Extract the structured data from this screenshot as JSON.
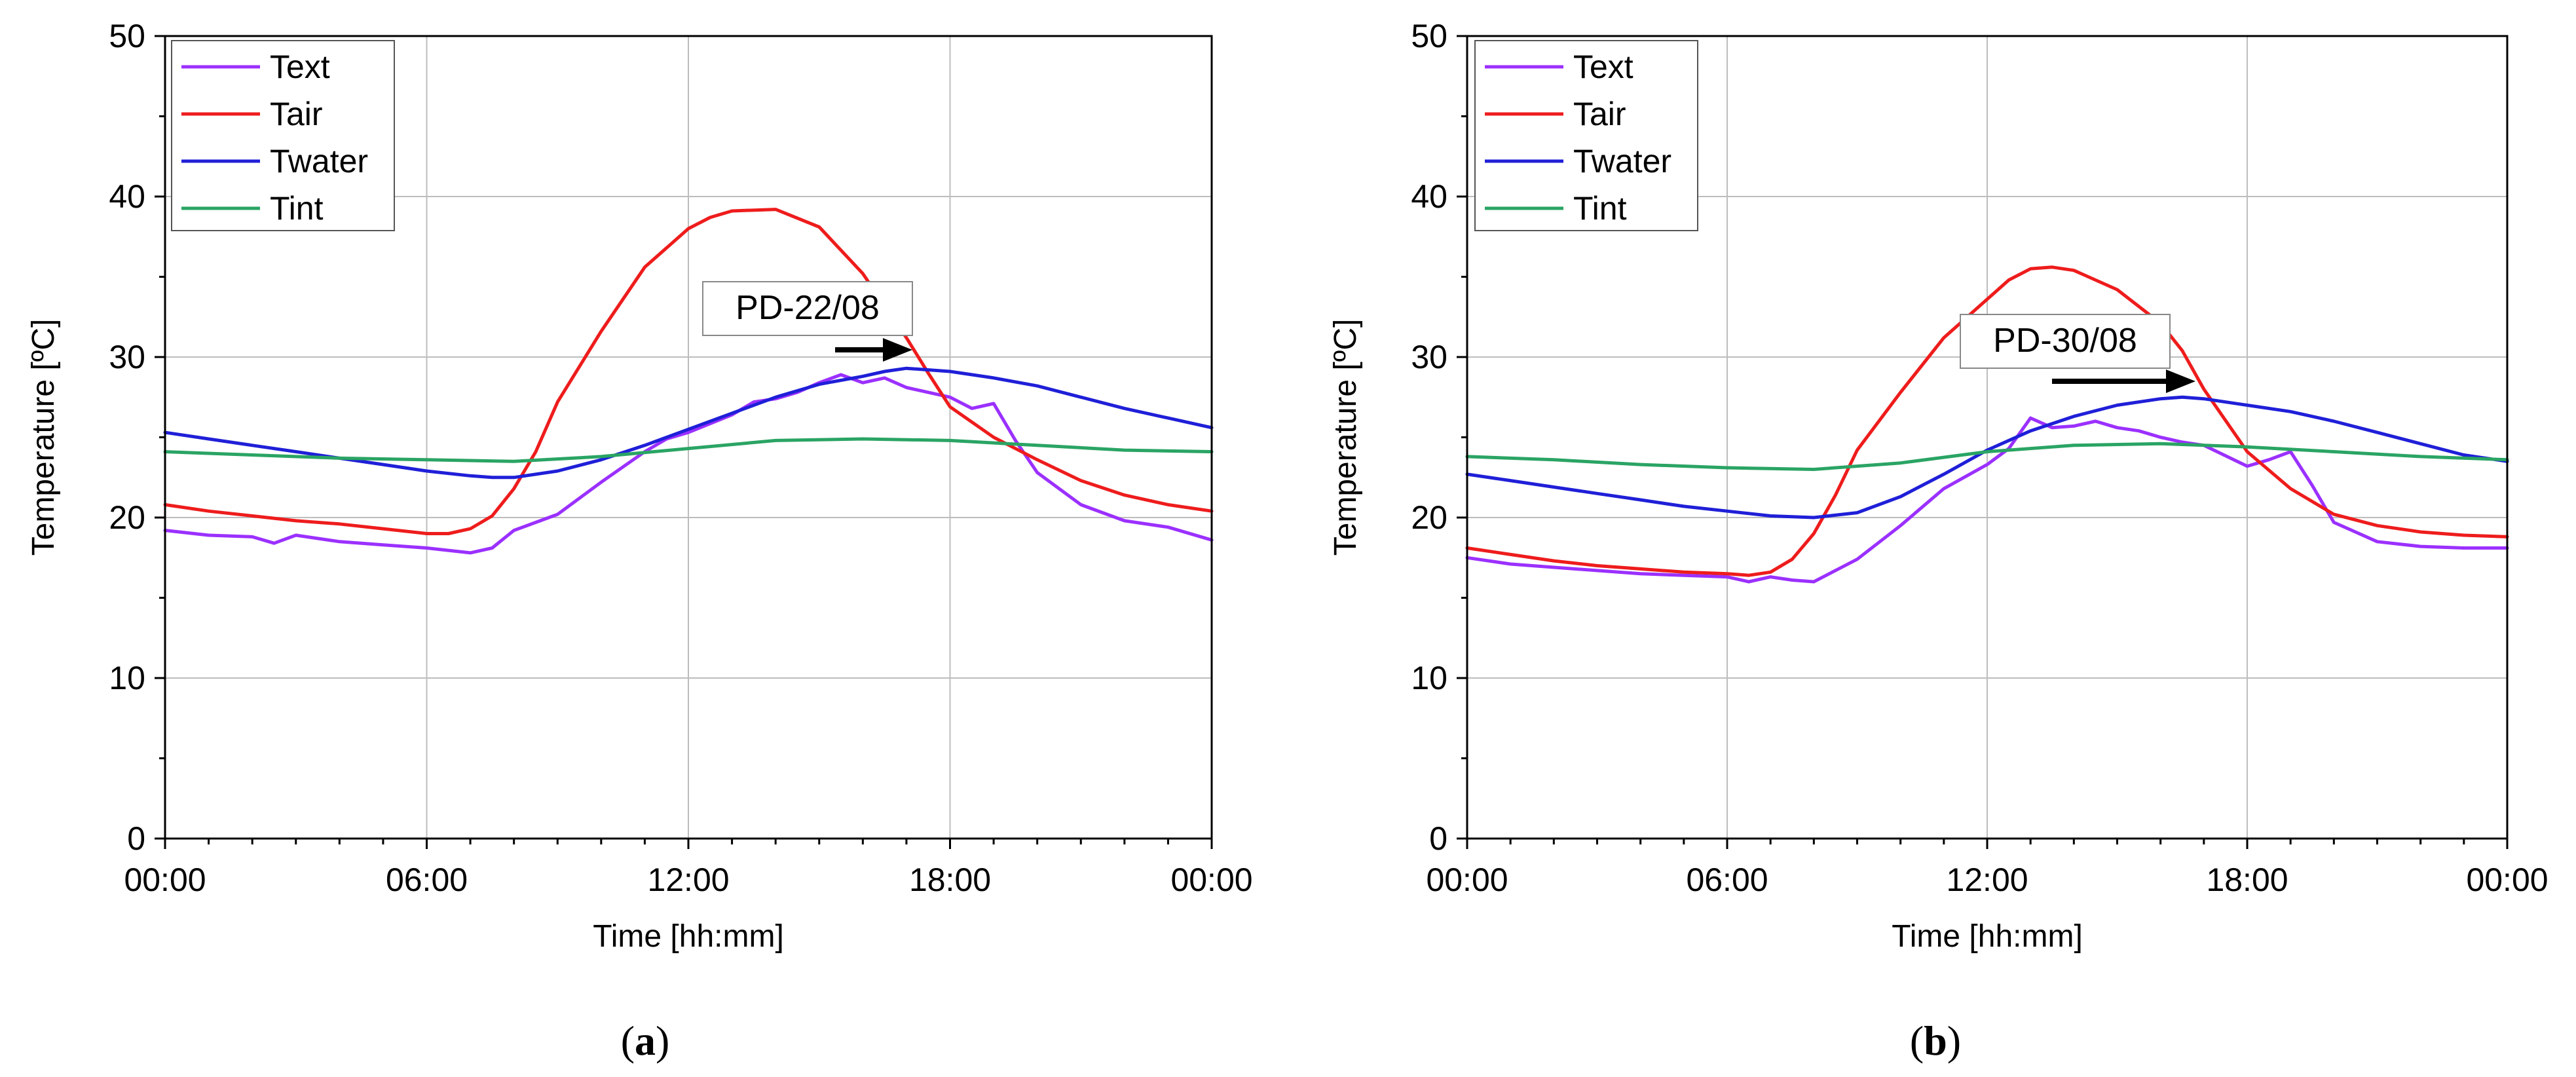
{
  "chart_data": [
    {
      "type": "line",
      "panel_caption": "a",
      "annotation": "PD-22/08",
      "xlabel": "Time [hh:mm]",
      "ylabel": "Temperature [ºC]",
      "x_tick_labels": [
        "00:00",
        "06:00",
        "12:00",
        "18:00",
        "00:00"
      ],
      "y_tick_labels": [
        "0",
        "10",
        "20",
        "30",
        "40",
        "50"
      ],
      "xlim": [
        0,
        24
      ],
      "ylim": [
        0,
        50
      ],
      "grid": true,
      "legend_position": "top-left",
      "series": [
        {
          "name": "Text",
          "color": "#9b30ff",
          "x": [
            0,
            1,
            2,
            2.5,
            3,
            4,
            5,
            6,
            7,
            7.5,
            8,
            9,
            10,
            11,
            11.5,
            12,
            13,
            13.5,
            14,
            14.5,
            15,
            15.5,
            16,
            16.5,
            17,
            18,
            18.5,
            19,
            19.5,
            20,
            21,
            22,
            23,
            24
          ],
          "y": [
            19.2,
            18.9,
            18.8,
            18.4,
            18.9,
            18.5,
            18.3,
            18.1,
            17.8,
            18.1,
            19.2,
            20.2,
            22.2,
            24.1,
            24.9,
            25.3,
            26.4,
            27.2,
            27.4,
            27.8,
            28.4,
            28.9,
            28.4,
            28.7,
            28.1,
            27.5,
            26.8,
            27.1,
            24.8,
            22.8,
            20.8,
            19.8,
            19.4,
            18.6
          ]
        },
        {
          "name": "Tair",
          "color": "#ee1c1c",
          "x": [
            0,
            1,
            2,
            3,
            4,
            5,
            6,
            6.5,
            7,
            7.5,
            8,
            8.5,
            9,
            10,
            11,
            12,
            12.5,
            13,
            14,
            15,
            16,
            17,
            17.5,
            18,
            19,
            20,
            21,
            22,
            23,
            24
          ],
          "y": [
            20.8,
            20.4,
            20.1,
            19.8,
            19.6,
            19.3,
            19.0,
            19.0,
            19.3,
            20.1,
            21.8,
            24.1,
            27.2,
            31.6,
            35.6,
            38.0,
            38.7,
            39.1,
            39.2,
            38.1,
            35.2,
            31.2,
            29.0,
            26.9,
            25.0,
            23.6,
            22.3,
            21.4,
            20.8,
            20.4
          ]
        },
        {
          "name": "Twater",
          "color": "#1f1fd8",
          "x": [
            0,
            1,
            2,
            3,
            4,
            5,
            6,
            7,
            7.5,
            8,
            9,
            10,
            11,
            12,
            13,
            14,
            15,
            16,
            16.5,
            17,
            18,
            19,
            20,
            21,
            22,
            23,
            24
          ],
          "y": [
            25.3,
            24.9,
            24.5,
            24.1,
            23.7,
            23.3,
            22.9,
            22.6,
            22.5,
            22.5,
            22.9,
            23.6,
            24.5,
            25.5,
            26.5,
            27.5,
            28.3,
            28.8,
            29.1,
            29.3,
            29.1,
            28.7,
            28.2,
            27.5,
            26.8,
            26.2,
            25.6
          ]
        },
        {
          "name": "Tint",
          "color": "#2aa464",
          "x": [
            0,
            2,
            4,
            6,
            8,
            10,
            12,
            14,
            16,
            18,
            20,
            22,
            24
          ],
          "y": [
            24.1,
            23.9,
            23.7,
            23.6,
            23.5,
            23.8,
            24.3,
            24.8,
            24.9,
            24.8,
            24.5,
            24.2,
            24.1
          ]
        }
      ]
    },
    {
      "type": "line",
      "panel_caption": "b",
      "annotation": "PD-30/08",
      "xlabel": "Time [hh:mm]",
      "ylabel": "Temperature [ºC]",
      "x_tick_labels": [
        "00:00",
        "06:00",
        "12:00",
        "18:00",
        "00:00"
      ],
      "y_tick_labels": [
        "0",
        "10",
        "20",
        "30",
        "40",
        "50"
      ],
      "xlim": [
        0,
        24
      ],
      "ylim": [
        0,
        50
      ],
      "grid": true,
      "legend_position": "top-left",
      "series": [
        {
          "name": "Text",
          "color": "#9b30ff",
          "x": [
            0,
            1,
            2,
            3,
            4,
            5,
            6,
            6.5,
            7,
            7.5,
            8,
            9,
            10,
            11,
            12,
            12.5,
            13,
            13.5,
            14,
            14.5,
            15,
            15.5,
            16,
            16.5,
            17,
            18,
            18.5,
            19,
            19.5,
            20,
            21,
            22,
            23,
            24
          ],
          "y": [
            17.5,
            17.1,
            16.9,
            16.7,
            16.5,
            16.4,
            16.3,
            16.0,
            16.3,
            16.1,
            16.0,
            17.4,
            19.5,
            21.8,
            23.3,
            24.3,
            26.2,
            25.6,
            25.7,
            26.0,
            25.6,
            25.4,
            25.0,
            24.7,
            24.5,
            23.2,
            23.6,
            24.1,
            22.0,
            19.7,
            18.5,
            18.2,
            18.1,
            18.1
          ]
        },
        {
          "name": "Tair",
          "color": "#ee1c1c",
          "x": [
            0,
            1,
            2,
            3,
            4,
            5,
            6,
            6.5,
            7,
            7.5,
            8,
            8.5,
            9,
            10,
            11,
            12,
            12.5,
            13,
            13.5,
            14,
            15,
            16,
            16.5,
            17,
            18,
            19,
            20,
            21,
            22,
            23,
            24
          ],
          "y": [
            18.1,
            17.7,
            17.3,
            17.0,
            16.8,
            16.6,
            16.5,
            16.4,
            16.6,
            17.4,
            19.0,
            21.4,
            24.2,
            27.8,
            31.2,
            33.6,
            34.8,
            35.5,
            35.6,
            35.4,
            34.2,
            32.1,
            30.4,
            28.0,
            24.1,
            21.8,
            20.2,
            19.5,
            19.1,
            18.9,
            18.8
          ]
        },
        {
          "name": "Twater",
          "color": "#1f1fd8",
          "x": [
            0,
            1,
            2,
            3,
            4,
            5,
            6,
            7,
            8,
            9,
            10,
            11,
            12,
            13,
            14,
            15,
            16,
            16.5,
            17,
            18,
            19,
            20,
            21,
            22,
            23,
            24
          ],
          "y": [
            22.7,
            22.3,
            21.9,
            21.5,
            21.1,
            20.7,
            20.4,
            20.1,
            20.0,
            20.3,
            21.3,
            22.7,
            24.2,
            25.4,
            26.3,
            27.0,
            27.4,
            27.5,
            27.4,
            27.0,
            26.6,
            26.0,
            25.3,
            24.6,
            23.9,
            23.5
          ]
        },
        {
          "name": "Tint",
          "color": "#2aa464",
          "x": [
            0,
            2,
            4,
            6,
            8,
            10,
            12,
            14,
            16,
            18,
            20,
            22,
            24
          ],
          "y": [
            23.8,
            23.6,
            23.3,
            23.1,
            23.0,
            23.4,
            24.1,
            24.5,
            24.6,
            24.4,
            24.1,
            23.8,
            23.6
          ]
        }
      ]
    }
  ]
}
